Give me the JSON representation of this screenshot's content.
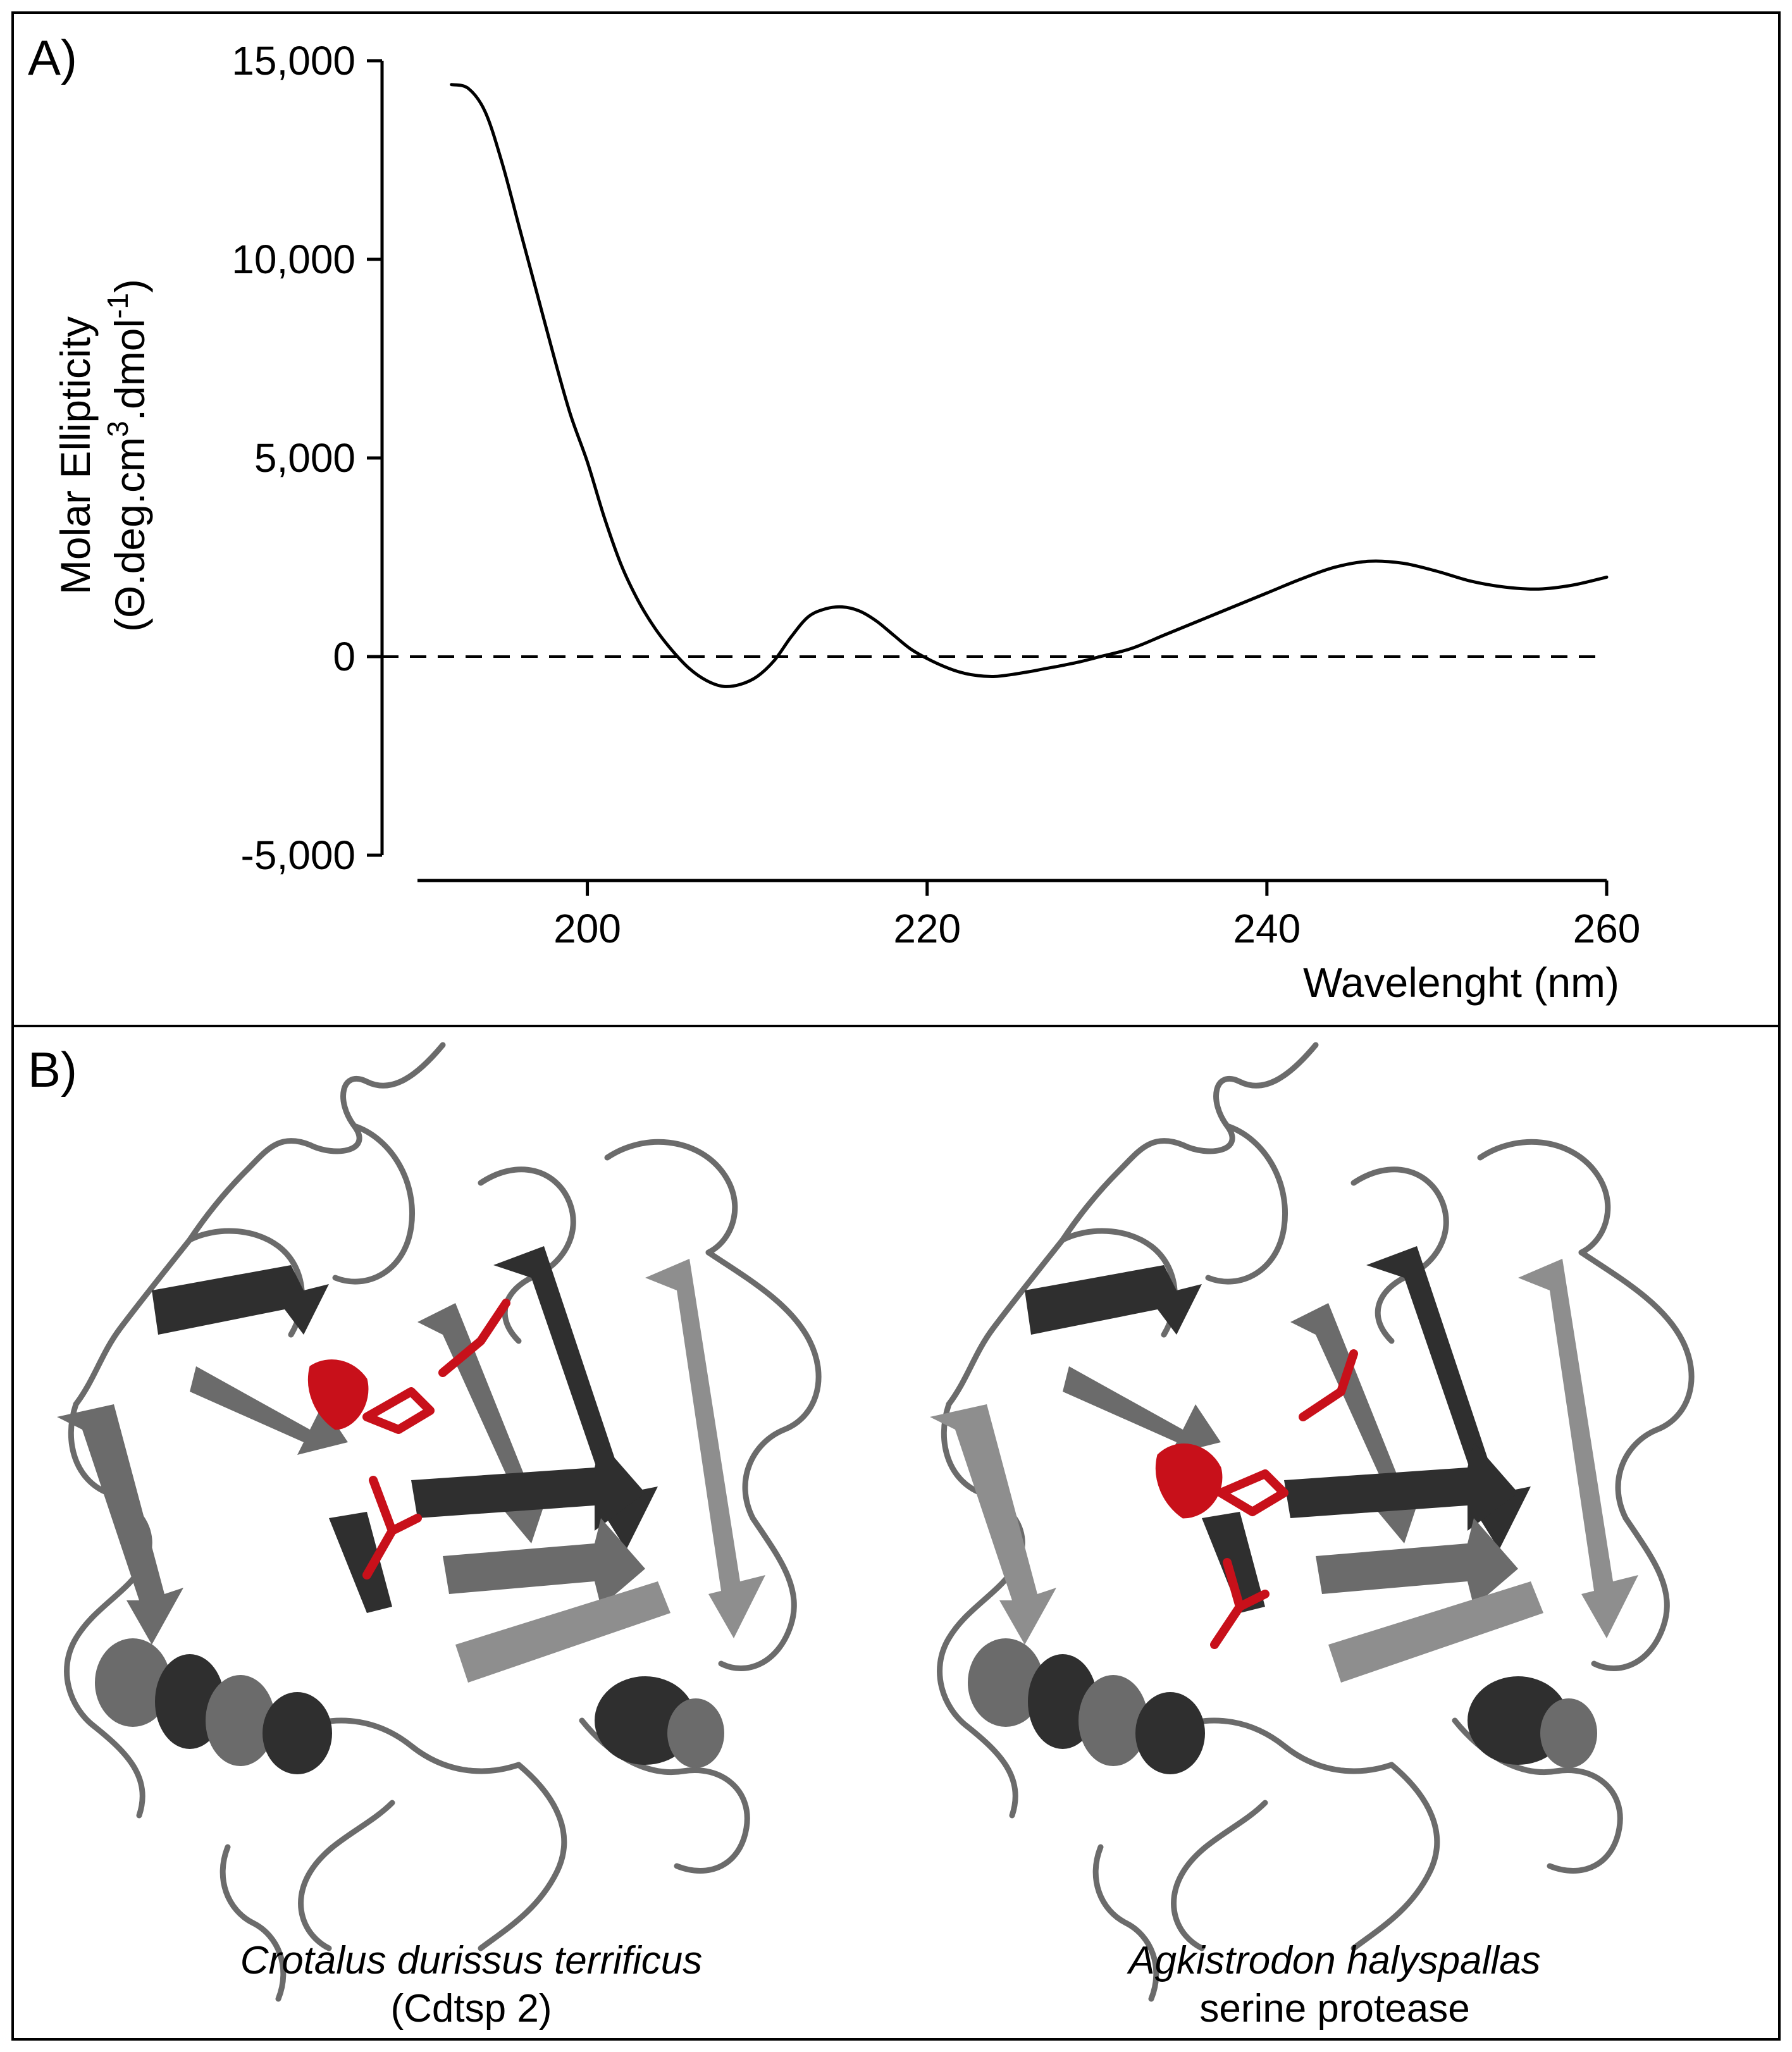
{
  "panels": {
    "a_label": "A)",
    "b_label": "B)"
  },
  "chart_data": {
    "type": "line",
    "title": "",
    "xlabel": "Wavelenght (nm)",
    "ylabel_line1": "Molar Ellipticity",
    "ylabel_line2_prefix": "(Θ.deg.cm",
    "ylabel_line2_sup": "3",
    "ylabel_line2_mid": ".dmol",
    "ylabel_line2_sup2": "-1",
    "ylabel_line2_suffix": ")",
    "xlim": [
      190,
      260
    ],
    "ylim": [
      -5000,
      15000
    ],
    "xticks": [
      200,
      220,
      240,
      260
    ],
    "xtick_labels": [
      "200",
      "220",
      "240",
      "260"
    ],
    "yticks": [
      -5000,
      0,
      5000,
      10000,
      15000
    ],
    "ytick_labels": [
      "-5,000",
      "0",
      "5,000",
      "10,000",
      "15,000"
    ],
    "reference_line": {
      "y": 0,
      "style": "dashed"
    },
    "grid": false,
    "series": [
      {
        "x": [
          192,
          193,
          194,
          195,
          196,
          197,
          198,
          199,
          200,
          201,
          202,
          203,
          204,
          205,
          206,
          207,
          208,
          209,
          210,
          211,
          212,
          213,
          214,
          215,
          216,
          217,
          218,
          219,
          220,
          221,
          222,
          223,
          224,
          225,
          226,
          227,
          228,
          229,
          230,
          232,
          234,
          236,
          238,
          240,
          242,
          244,
          246,
          248,
          250,
          252,
          254,
          256,
          258,
          260
        ],
        "y": [
          14400,
          14300,
          13700,
          12400,
          10800,
          9200,
          7600,
          6100,
          4900,
          3500,
          2300,
          1400,
          700,
          150,
          -300,
          -600,
          -750,
          -700,
          -500,
          -100,
          500,
          1000,
          1200,
          1250,
          1150,
          900,
          550,
          200,
          -50,
          -250,
          -400,
          -480,
          -500,
          -450,
          -380,
          -300,
          -220,
          -130,
          -20,
          200,
          550,
          900,
          1250,
          1600,
          1950,
          2250,
          2400,
          2350,
          2150,
          1900,
          1750,
          1700,
          1800,
          2000
        ]
      }
    ]
  },
  "captions": {
    "left_species": "Crotalus durissus terrificus",
    "left_protein": "(Cdtsp 2)",
    "right_species": "Agkistrodon halyspallas",
    "right_protein": "serine protease"
  },
  "colors": {
    "ribbon_dark": "#2f2f2f",
    "ribbon_mid": "#6b6b6b",
    "ribbon_light": "#8e8e8e",
    "active_site": "#c8101a",
    "frame": "#000000"
  }
}
